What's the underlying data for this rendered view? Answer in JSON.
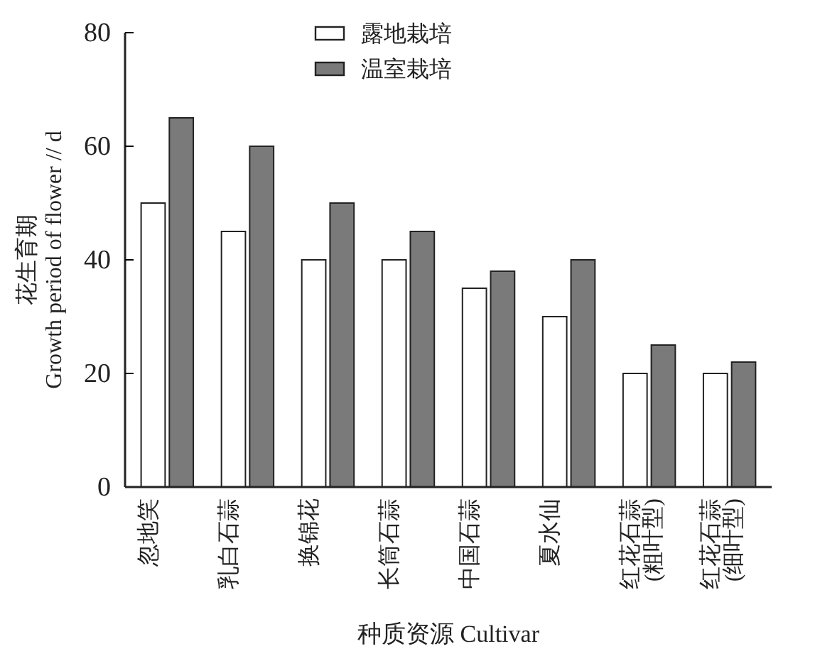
{
  "chart_data": {
    "type": "bar",
    "xlabel": "种质资源 Cultivar",
    "ylabel": "花生育期\nGrowth period of flower // d",
    "categories": [
      "忽地笑",
      "乳白石蒜",
      "换锦花",
      "长筒石蒜",
      "中国石蒜",
      "夏水仙",
      "红花石蒜\n(粗叶型)",
      "红花石蒜\n(细叶型)"
    ],
    "series": [
      {
        "name": "露地栽培",
        "color": "#ffffff",
        "values": [
          50,
          45,
          40,
          40,
          35,
          30,
          20,
          20
        ]
      },
      {
        "name": "温室栽培",
        "color": "#7a7a7a",
        "values": [
          65,
          60,
          50,
          45,
          38,
          40,
          25,
          22
        ]
      }
    ],
    "ylim": [
      0,
      80
    ],
    "yticks": [
      0,
      20,
      40,
      60,
      80
    ],
    "legend": "top",
    "grid": false
  }
}
